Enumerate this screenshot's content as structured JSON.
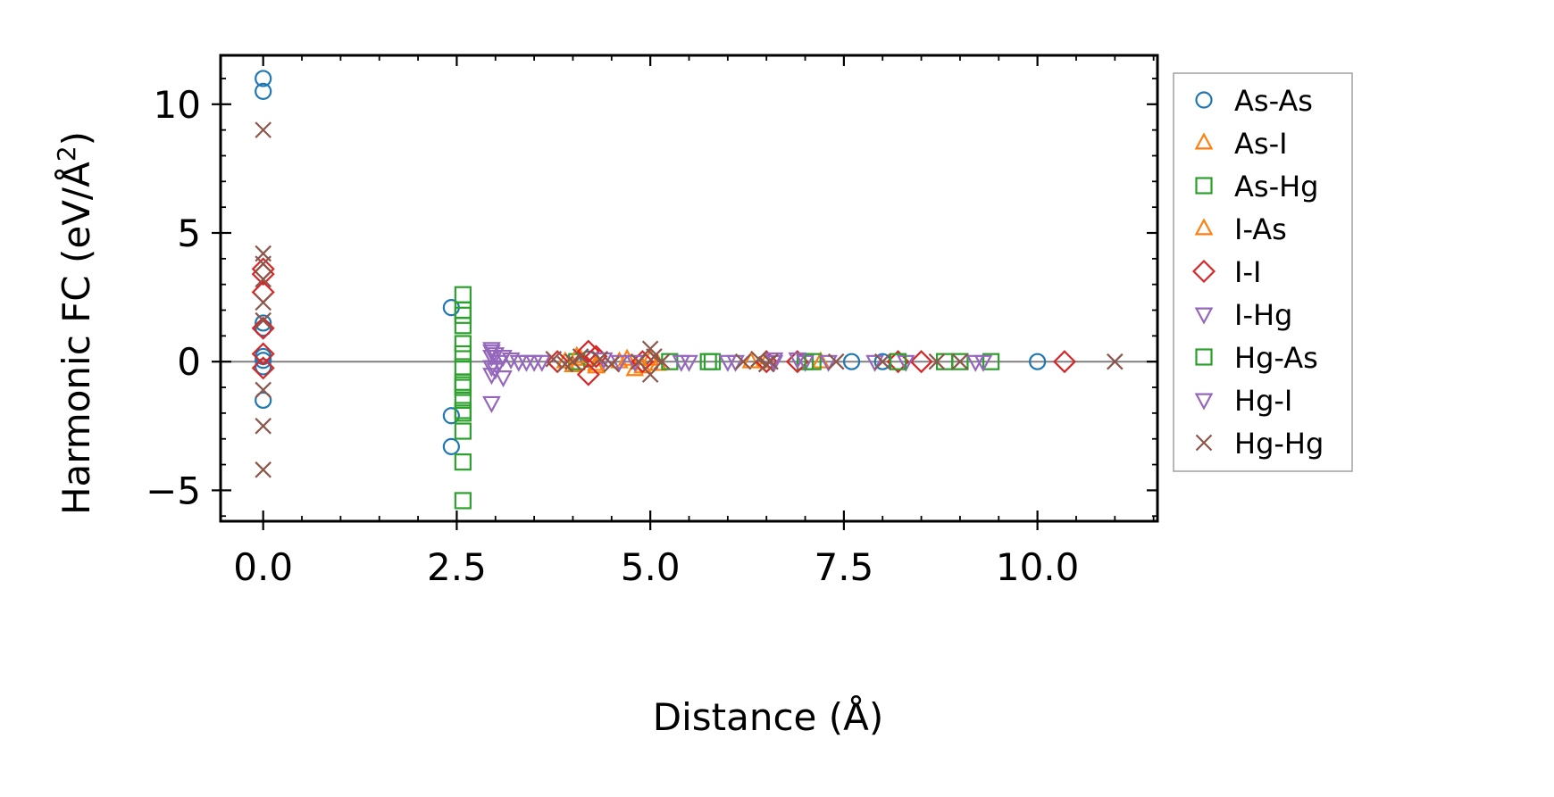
{
  "chart_data": {
    "type": "scatter",
    "title": "",
    "xlabel": "Distance (Å)",
    "ylabel_main": "Harmonic FC (eV/Å",
    "ylabel_sup": "2",
    "ylabel_close": ")",
    "xlim": [
      -0.55,
      11.55
    ],
    "ylim": [
      -6.2,
      11.9
    ],
    "xticks": [
      0.0,
      2.5,
      5.0,
      7.5,
      10.0
    ],
    "xtick_labels": [
      "0.0",
      "2.5",
      "5.0",
      "7.5",
      "10.0"
    ],
    "yticks": [
      -5,
      0,
      5,
      10
    ],
    "ytick_labels": [
      "−5",
      "0",
      "5",
      "10"
    ],
    "grid": false,
    "legend_position": "outside-right",
    "zero_line": true,
    "series": [
      {
        "name": "As-As",
        "marker": "circle",
        "color": "#1f77b4",
        "points": [
          [
            0,
            11.0
          ],
          [
            0,
            10.5
          ],
          [
            0,
            1.5
          ],
          [
            0,
            1.3
          ],
          [
            0,
            0.2
          ],
          [
            0,
            0.05
          ],
          [
            0,
            -0.2
          ],
          [
            0,
            -1.5
          ],
          [
            2.43,
            2.1
          ],
          [
            2.43,
            -2.1
          ],
          [
            2.43,
            -3.3
          ],
          [
            4.2,
            0.1
          ],
          [
            7.6,
            0.0
          ],
          [
            8.0,
            0.0
          ],
          [
            10.0,
            0.0
          ]
        ]
      },
      {
        "name": "As-I",
        "marker": "triangle-up",
        "color": "#ff7f0e",
        "points": [
          [
            3.9,
            0.0
          ],
          [
            4.0,
            -0.15
          ],
          [
            4.1,
            0.1
          ],
          [
            4.3,
            -0.2
          ],
          [
            4.6,
            0.0
          ],
          [
            4.8,
            -0.3
          ],
          [
            5.0,
            0.1
          ],
          [
            5.1,
            -0.1
          ],
          [
            6.5,
            0.0
          ],
          [
            7.2,
            0.0
          ]
        ]
      },
      {
        "name": "As-Hg",
        "marker": "square",
        "color": "#2ca02c",
        "points": [
          [
            2.58,
            2.6
          ],
          [
            2.58,
            2.0
          ],
          [
            2.58,
            1.4
          ],
          [
            2.58,
            0.7
          ],
          [
            2.58,
            0.3
          ],
          [
            2.58,
            -0.2
          ],
          [
            2.58,
            -0.8
          ],
          [
            2.58,
            -1.0
          ],
          [
            2.58,
            -1.5
          ],
          [
            2.58,
            -2.0
          ],
          [
            2.58,
            -2.7
          ],
          [
            2.58,
            -3.9
          ],
          [
            2.58,
            -5.4
          ],
          [
            4.05,
            0.0
          ],
          [
            5.25,
            0.0
          ],
          [
            5.8,
            0.0
          ],
          [
            7.0,
            0.0
          ],
          [
            8.8,
            0.0
          ],
          [
            9.4,
            0.0
          ]
        ]
      },
      {
        "name": "I-As",
        "marker": "triangle-up",
        "color": "#ff7f0e",
        "points": [
          [
            4.05,
            0.2
          ],
          [
            4.3,
            -0.1
          ],
          [
            4.7,
            0.1
          ],
          [
            4.9,
            -0.2
          ],
          [
            6.3,
            0.0
          ]
        ]
      },
      {
        "name": "I-I",
        "marker": "diamond",
        "color": "#d62728",
        "points": [
          [
            0,
            3.6
          ],
          [
            0,
            3.4
          ],
          [
            0,
            2.7
          ],
          [
            0,
            1.3
          ],
          [
            0,
            0.3
          ],
          [
            0,
            -0.25
          ],
          [
            3.8,
            0.0
          ],
          [
            4.2,
            0.4
          ],
          [
            4.2,
            -0.5
          ],
          [
            4.3,
            0.2
          ],
          [
            4.9,
            0.0
          ],
          [
            6.5,
            0.0
          ],
          [
            6.9,
            0.0
          ],
          [
            8.2,
            0.0
          ],
          [
            8.5,
            0.0
          ],
          [
            10.35,
            0.0
          ]
        ]
      },
      {
        "name": "I-Hg",
        "marker": "triangle-down",
        "color": "#9467bd",
        "points": [
          [
            2.95,
            0.5
          ],
          [
            2.95,
            0.2
          ],
          [
            2.95,
            -0.2
          ],
          [
            2.95,
            -0.5
          ],
          [
            2.95,
            -1.6
          ],
          [
            3.0,
            0.3
          ],
          [
            3.05,
            0.0
          ],
          [
            3.1,
            -0.6
          ],
          [
            3.2,
            0.1
          ],
          [
            3.4,
            0.0
          ],
          [
            3.6,
            0.0
          ],
          [
            4.4,
            0.1
          ],
          [
            4.8,
            0.0
          ],
          [
            5.4,
            0.0
          ],
          [
            6.1,
            0.0
          ],
          [
            6.6,
            0.1
          ],
          [
            7.0,
            0.0
          ],
          [
            8.3,
            0.0
          ]
        ]
      },
      {
        "name": "Hg-As",
        "marker": "square",
        "color": "#2ca02c",
        "points": [
          [
            2.58,
            1.8
          ],
          [
            2.58,
            -0.9
          ],
          [
            2.58,
            -1.9
          ],
          [
            5.75,
            0.0
          ],
          [
            7.1,
            0.0
          ],
          [
            8.2,
            0.0
          ],
          [
            9.0,
            0.0
          ]
        ]
      },
      {
        "name": "Hg-I",
        "marker": "triangle-down",
        "color": "#9467bd",
        "points": [
          [
            2.95,
            0.4
          ],
          [
            3.0,
            -0.3
          ],
          [
            3.1,
            0.2
          ],
          [
            3.3,
            0.0
          ],
          [
            3.5,
            0.0
          ],
          [
            4.6,
            0.0
          ],
          [
            5.5,
            0.0
          ],
          [
            6.0,
            0.0
          ],
          [
            6.6,
            0.0
          ],
          [
            6.9,
            0.1
          ],
          [
            7.3,
            0.0
          ],
          [
            7.9,
            0.0
          ],
          [
            9.2,
            0.0
          ],
          [
            9.3,
            0.0
          ]
        ]
      },
      {
        "name": "Hg-Hg",
        "marker": "x",
        "color": "#8c564b",
        "points": [
          [
            0,
            9.0
          ],
          [
            0,
            4.2
          ],
          [
            0,
            3.8
          ],
          [
            0,
            3.2
          ],
          [
            0,
            2.3
          ],
          [
            0,
            1.6
          ],
          [
            0,
            -1.1
          ],
          [
            0,
            -2.5
          ],
          [
            0,
            -4.2
          ],
          [
            3.75,
            0.1
          ],
          [
            3.9,
            -0.1
          ],
          [
            4.0,
            0.0
          ],
          [
            4.1,
            0.2
          ],
          [
            4.35,
            0.1
          ],
          [
            4.5,
            -0.1
          ],
          [
            4.85,
            0.0
          ],
          [
            5.0,
            0.5
          ],
          [
            5.0,
            -0.5
          ],
          [
            5.05,
            0.2
          ],
          [
            5.15,
            0.0
          ],
          [
            6.2,
            0.0
          ],
          [
            6.4,
            0.1
          ],
          [
            6.5,
            -0.1
          ],
          [
            6.55,
            0.0
          ],
          [
            7.4,
            0.0
          ],
          [
            8.0,
            0.0
          ],
          [
            8.7,
            0.0
          ],
          [
            9.0,
            0.0
          ],
          [
            11.0,
            0.0
          ]
        ]
      }
    ]
  }
}
